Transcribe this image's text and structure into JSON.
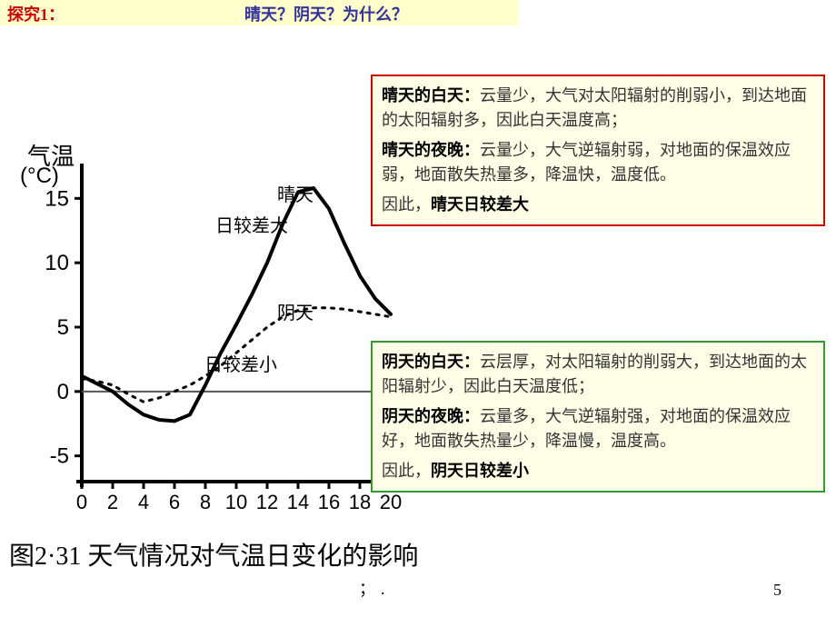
{
  "header": {
    "left": "探究1：",
    "right": "晴天？阴天？为什么？"
  },
  "chart": {
    "type": "line",
    "y_axis_label_l1": "气温",
    "y_axis_label_l2": "(°C)",
    "y_ticks": [
      -5,
      0,
      5,
      10,
      15
    ],
    "x_ticks": [
      0,
      2,
      4,
      6,
      8,
      10,
      12,
      14,
      16,
      18,
      20
    ],
    "ylim": [
      -7,
      17
    ],
    "series": {
      "sunny": {
        "label": "晴天",
        "style": "solid",
        "color": "#000000",
        "line_width": 4,
        "data": [
          [
            0,
            1.2
          ],
          [
            1,
            0.6
          ],
          [
            2,
            0
          ],
          [
            3,
            -1
          ],
          [
            4,
            -1.8
          ],
          [
            5,
            -2.2
          ],
          [
            6,
            -2.3
          ],
          [
            7,
            -1.8
          ],
          [
            8,
            0.5
          ],
          [
            9,
            3
          ],
          [
            10,
            5.2
          ],
          [
            11,
            7.5
          ],
          [
            12,
            10
          ],
          [
            13,
            13
          ],
          [
            14,
            15.5
          ],
          [
            15,
            15.8
          ],
          [
            16,
            14.2
          ],
          [
            17,
            11.5
          ],
          [
            18,
            9
          ],
          [
            19,
            7.2
          ],
          [
            20,
            6
          ]
        ]
      },
      "cloudy": {
        "label": "阴天",
        "style": "dotted",
        "color": "#000000",
        "line_width": 3,
        "data": [
          [
            0,
            1
          ],
          [
            1,
            0.8
          ],
          [
            2,
            0.5
          ],
          [
            3,
            -0.2
          ],
          [
            4,
            -0.8
          ],
          [
            5,
            -0.5
          ],
          [
            6,
            0
          ],
          [
            7,
            0.5
          ],
          [
            8,
            1.2
          ],
          [
            9,
            2
          ],
          [
            10,
            3
          ],
          [
            11,
            4
          ],
          [
            12,
            5
          ],
          [
            13,
            5.8
          ],
          [
            14,
            6.3
          ],
          [
            15,
            6.5
          ],
          [
            16,
            6.5
          ],
          [
            17,
            6.4
          ],
          [
            18,
            6.2
          ],
          [
            19,
            6
          ],
          [
            20,
            5.8
          ]
        ]
      }
    },
    "annotations": {
      "sunny_label": "晴天",
      "cloudy_label": "阴天",
      "range_big": "日较差大",
      "range_small": "日较差小"
    },
    "caption": "图2·31 天气情况对气温日变化的影响",
    "axis_color": "#000000",
    "line_color": "#000000",
    "background": "#ffffff"
  },
  "box_sunny": {
    "p1_bold": "晴天的白天：",
    "p1_rest": "云量少，大气对太阳辐射的削弱小，到达地面的太阳辐射多，因此白天温度高；",
    "p2_bold": "晴天的夜晚：",
    "p2_rest": "云量少，大气逆辐射弱，对地面的保温效应弱，地面散失热量多，降温快，温度低。",
    "p3_pre": "因此，",
    "p3_bold": "晴天日较差大"
  },
  "box_cloudy": {
    "p1_bold": "阴天的白天：",
    "p1_rest": "云层厚，对太阳辐射的削弱大，到达地面的太阳辐射少，因此白天温度低；",
    "p2_bold": "阴天的夜晚：",
    "p2_rest": "云量多，大气逆辐射强，对地面的保温效应好，地面散失热量少，降温慢，温度高。",
    "p3_pre": "因此，",
    "p3_bold": "阴天日较差小"
  },
  "page_number": "5",
  "footer_dots": "；."
}
